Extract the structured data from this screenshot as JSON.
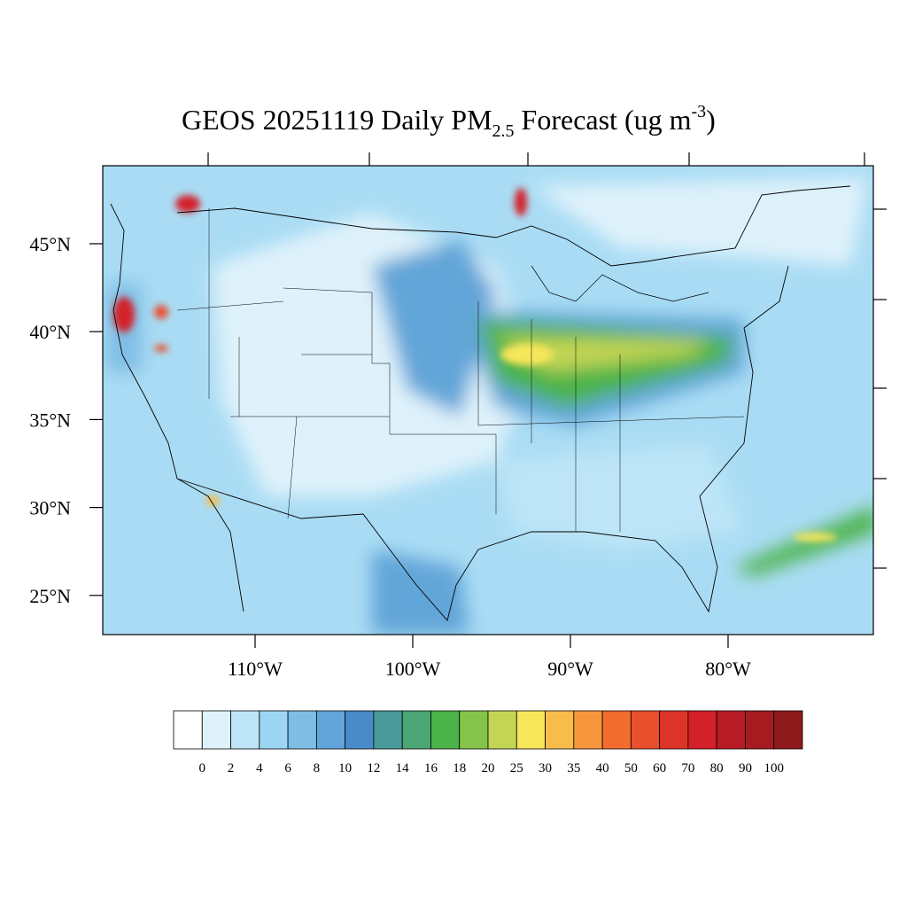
{
  "title": {
    "main": "GEOS 20251119 Daily PM",
    "subscript": "2.5",
    "rest": " Forecast (ug m",
    "superscript": "-3",
    "end": ")"
  },
  "latitude_labels": [
    "45°N",
    "40°N",
    "35°N",
    "30°N",
    "25°N"
  ],
  "longitude_labels": [
    "110°W",
    "100°W",
    "90°W",
    "80°W"
  ],
  "colorbar": {
    "labels": [
      "0",
      "2",
      "4",
      "6",
      "8",
      "10",
      "12",
      "14",
      "16",
      "18",
      "20",
      "25",
      "30",
      "35",
      "40",
      "50",
      "60",
      "70",
      "80",
      "90",
      "100"
    ],
    "colors": [
      "#ffffff",
      "#dff2fb",
      "#bde5f7",
      "#9dd6f2",
      "#7fbde4",
      "#62a5d8",
      "#4a8ac9",
      "#4a9a9a",
      "#4aa672",
      "#4cb34a",
      "#86c34a",
      "#c3d555",
      "#f6e65a",
      "#f8bc4a",
      "#f7973d",
      "#f26c30",
      "#e8502d",
      "#de3328",
      "#d32029",
      "#b91c24",
      "#a51b20",
      "#8f1a1c"
    ]
  }
}
